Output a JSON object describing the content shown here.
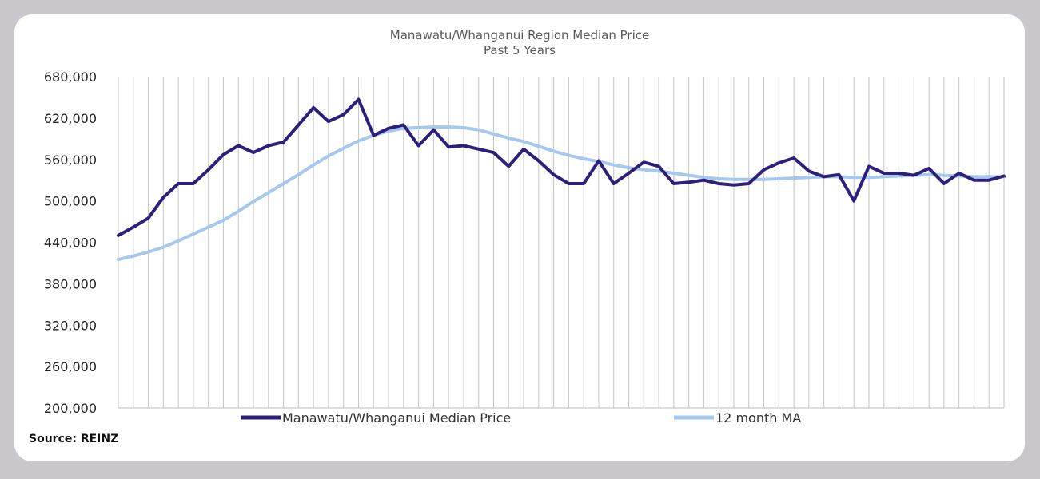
{
  "chart_data": {
    "type": "line",
    "title": "Manawatu/Whanganui Region Median Price",
    "subtitle": "Past 5 Years",
    "xlabel": "",
    "ylabel": "",
    "ylim": [
      200000,
      680000
    ],
    "yticks": [
      200000,
      260000,
      320000,
      380000,
      440000,
      500000,
      560000,
      620000,
      680000
    ],
    "ytick_labels": [
      "200,000",
      "260,000",
      "320,000",
      "380,000",
      "440,000",
      "500,000",
      "560,000",
      "620,000",
      "680,000"
    ],
    "grid": "vertical",
    "legend_position": "bottom",
    "series": [
      {
        "name": "Manawatu/Whanganui Median Price",
        "color": "#2e1f7a",
        "values": [
          450000,
          462000,
          475000,
          505000,
          525000,
          525000,
          545000,
          567000,
          580000,
          570000,
          580000,
          585000,
          610000,
          635000,
          615000,
          625000,
          647000,
          595000,
          605000,
          610000,
          580000,
          603000,
          578000,
          580000,
          575000,
          570000,
          550000,
          575000,
          558000,
          538000,
          525000,
          525000,
          558000,
          525000,
          540000,
          556000,
          550000,
          525000,
          527000,
          530000,
          525000,
          523000,
          525000,
          545000,
          555000,
          562000,
          543000,
          535000,
          538000,
          500000,
          550000,
          540000,
          540000,
          537000,
          547000,
          525000,
          540000,
          530000,
          530000,
          536000
        ]
      },
      {
        "name": "12 month MA",
        "color": "#a5c8ef",
        "values": [
          415000,
          420000,
          426000,
          433000,
          442000,
          452000,
          462000,
          472000,
          485000,
          499000,
          512000,
          525000,
          538000,
          552000,
          565000,
          576000,
          587000,
          595000,
          601000,
          605000,
          606000,
          607000,
          607000,
          606000,
          603000,
          597000,
          591000,
          586000,
          579000,
          572000,
          566000,
          561000,
          557000,
          552000,
          548000,
          545000,
          543000,
          540000,
          537000,
          534000,
          532000,
          531000,
          531000,
          531000,
          532000,
          533000,
          534000,
          535000,
          535000,
          534000,
          534000,
          535000,
          536000,
          537000,
          538000,
          537000,
          536000,
          535000,
          535000,
          535000
        ]
      }
    ]
  },
  "source": "Source: REINZ"
}
